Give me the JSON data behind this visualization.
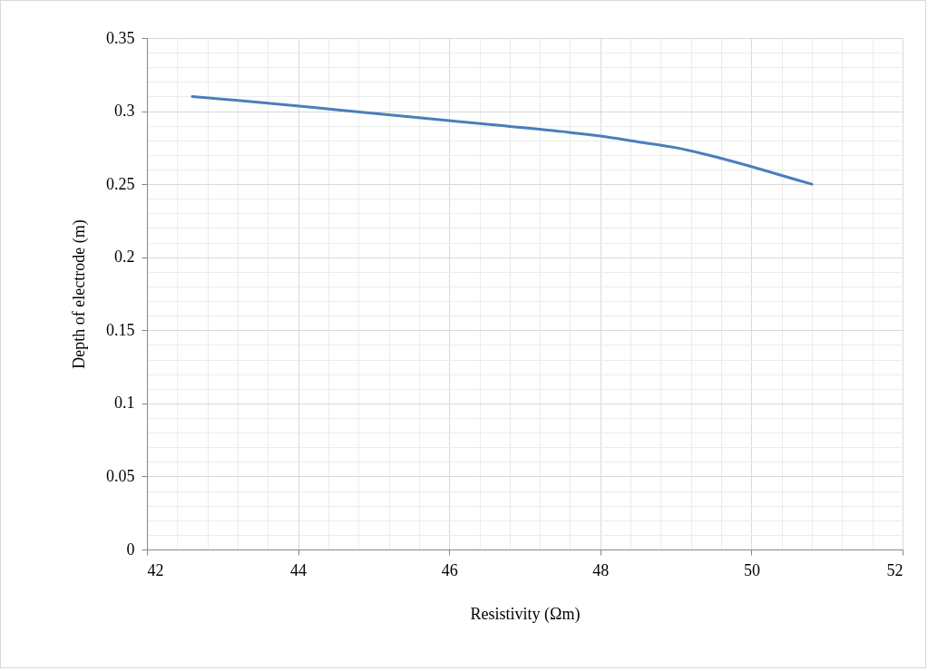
{
  "chart_data": {
    "type": "line",
    "xlabel": "Resistivity (Ωm)",
    "ylabel": "Depth of electrode (m)",
    "x": [
      42.6,
      43.5,
      44.5,
      45.5,
      46.5,
      47.5,
      48,
      48.5,
      49,
      49.5,
      50,
      50.4,
      50.8
    ],
    "series": [
      {
        "color": "#4a7ebb",
        "values": [
          0.31,
          0.306,
          0.301,
          0.296,
          0.291,
          0.286,
          0.283,
          0.279,
          0.275,
          0.269,
          0.262,
          0.256,
          0.25
        ]
      }
    ],
    "xlim": [
      42,
      52
    ],
    "xticks": [
      42,
      44,
      46,
      48,
      50,
      52
    ],
    "ylim": [
      0,
      0.35
    ],
    "yticks": [
      0,
      0.05,
      0.1,
      0.15,
      0.2,
      0.25,
      0.3,
      0.35
    ],
    "grid": true,
    "legend": false,
    "marker": "none",
    "line_style": "solid"
  }
}
